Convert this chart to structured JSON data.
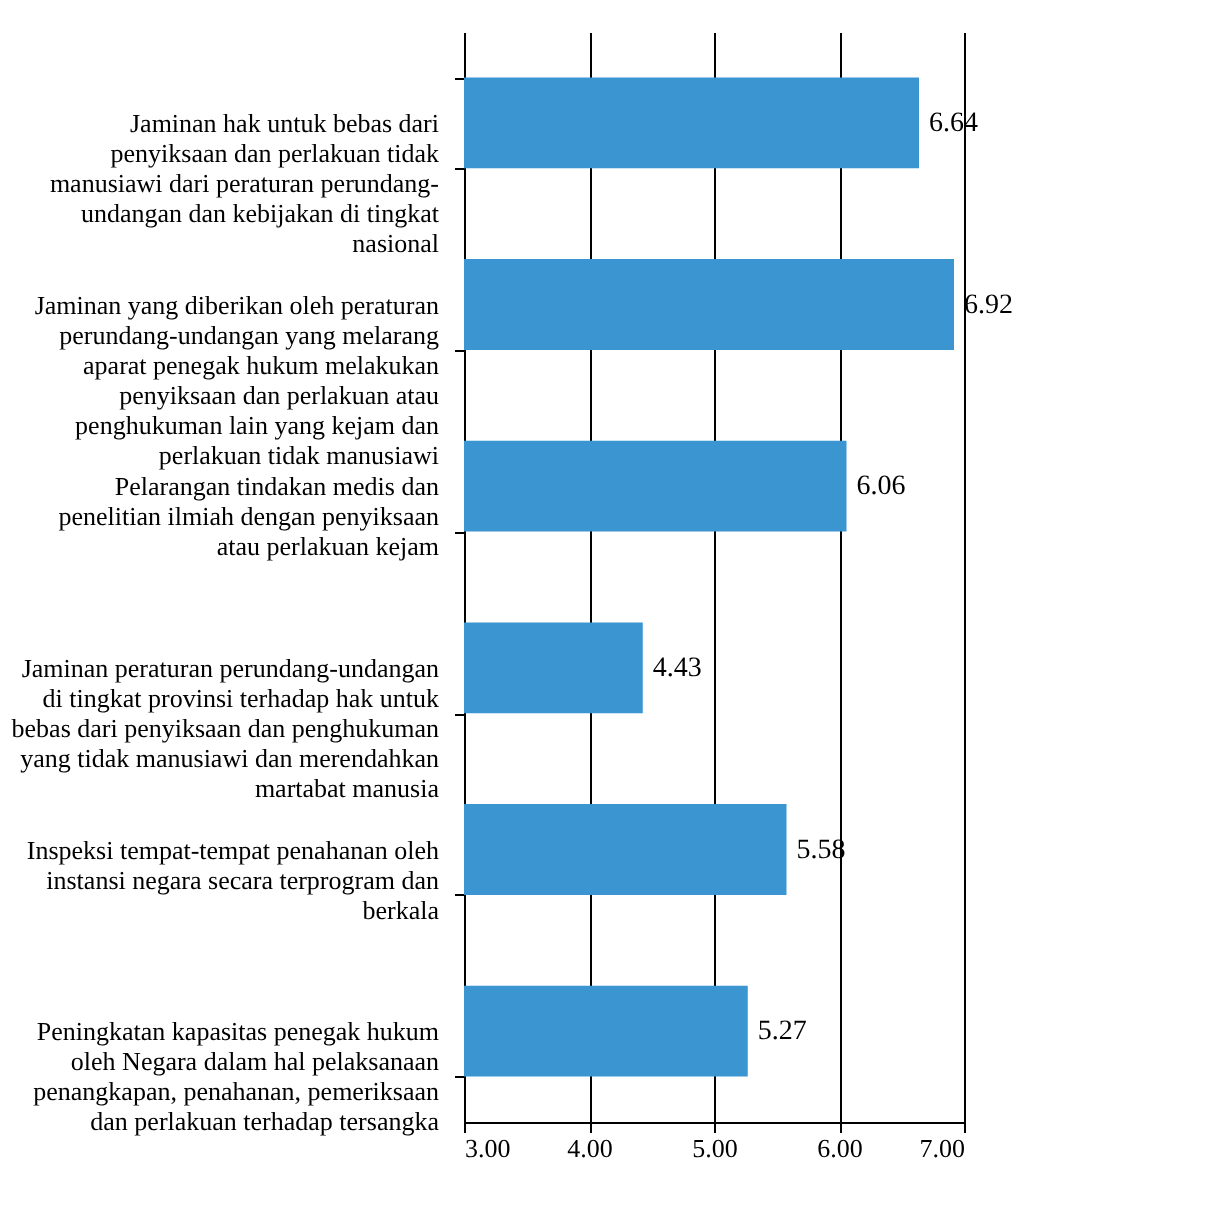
{
  "chart_data": {
    "type": "bar",
    "orientation": "horizontal",
    "categories": [
      "Jaminan hak untuk bebas dari penyiksaan dan perlakuan tidak manusiawi dari peraturan perundang-undangan dan kebijakan di tingkat nasional",
      "Jaminan yang diberikan oleh peraturan perundang-undangan yang melarang aparat penegak hukum melakukan penyiksaan dan perlakuan atau penghukuman lain yang kejam dan perlakuan tidak manusiawi",
      "Pelarangan tindakan medis dan penelitian ilmiah dengan penyiksaan atau perlakuan kejam",
      "Jaminan peraturan perundang-undangan di tingkat provinsi terhadap hak untuk bebas dari penyiksaan dan penghukuman yang tidak manusiawi dan merendahkan martabat manusia",
      "Inspeksi tempat-tempat penahanan oleh instansi negara secara terprogram dan berkala",
      "Peningkatan kapasitas penegak hukum oleh Negara dalam hal pelaksanaan penangkapan, penahanan, pemeriksaan dan perlakuan terhadap tersangka"
    ],
    "values": [
      6.64,
      6.92,
      6.06,
      4.43,
      5.58,
      5.27
    ],
    "color": "#3a95d1",
    "xlim": [
      3,
      7
    ],
    "xticks": [
      {
        "value": 3,
        "label": "3.00"
      },
      {
        "value": 4,
        "label": "4.00"
      },
      {
        "value": 5,
        "label": "5.00"
      },
      {
        "value": 6,
        "label": "6.00"
      },
      {
        "value": 7,
        "label": "7.00"
      }
    ],
    "grid": "x",
    "data_labels": true
  }
}
